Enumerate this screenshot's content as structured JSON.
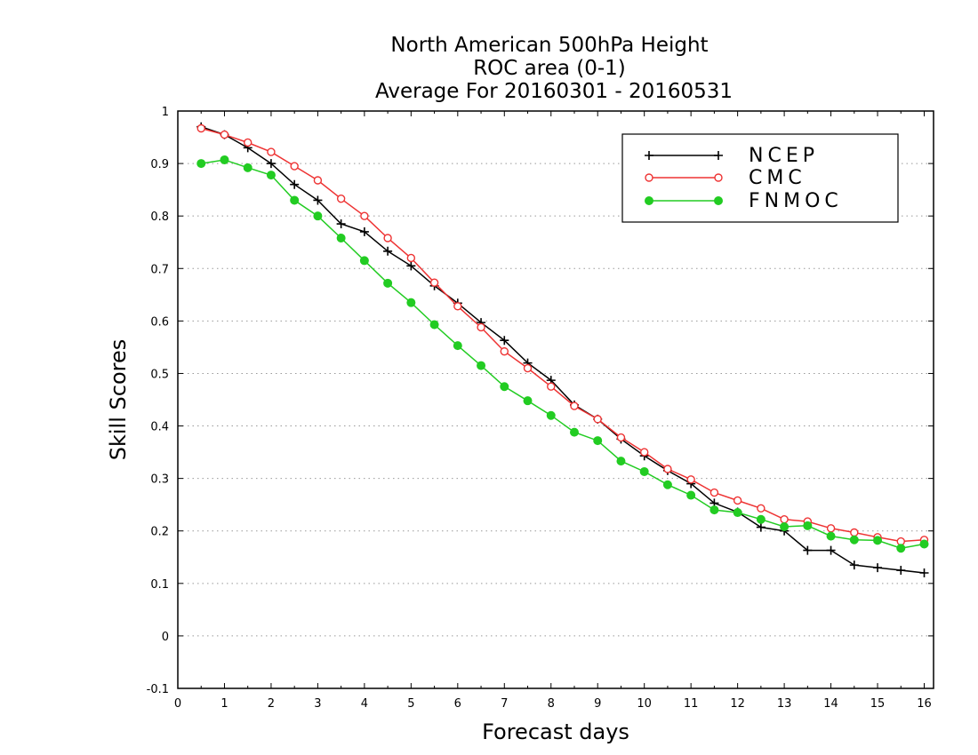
{
  "chart_data": {
    "type": "line",
    "title": [
      "North American 500hPa Height",
      "ROC area (0-1)",
      "Average For 20160301 - 20160531"
    ],
    "xlabel": "Forecast days",
    "ylabel": "Skill Scores",
    "xlim": [
      0,
      16.2
    ],
    "ylim": [
      -0.1,
      1
    ],
    "xticks": [
      "0",
      "1",
      "2",
      "3",
      "4",
      "5",
      "6",
      "7",
      "8",
      "9",
      "10",
      "11",
      "12",
      "13",
      "14",
      "15",
      "16"
    ],
    "yticks": [
      "1",
      "0.9",
      "0.8",
      "0.7",
      "0.6",
      "0.5",
      "0.4",
      "0.3",
      "0.2",
      "0.1",
      "0",
      "-0.1"
    ],
    "grid": true,
    "legend_position": "top-right",
    "x": [
      0.5,
      1,
      1.5,
      2,
      2.5,
      3,
      3.5,
      4,
      4.5,
      5,
      5.5,
      6,
      6.5,
      7,
      7.5,
      8,
      8.5,
      9,
      9.5,
      10,
      10.5,
      11,
      11.5,
      12,
      12.5,
      13,
      13.5,
      14,
      14.5,
      15,
      15.5,
      16
    ],
    "series": [
      {
        "name": "NCEP",
        "color": "#000000",
        "marker": "plus",
        "values": [
          0.97,
          0.955,
          0.93,
          0.9,
          0.86,
          0.83,
          0.785,
          0.77,
          0.733,
          0.705,
          0.667,
          0.634,
          0.597,
          0.563,
          0.52,
          0.487,
          0.44,
          0.413,
          0.375,
          0.343,
          0.315,
          0.29,
          0.253,
          0.236,
          0.207,
          0.2,
          0.163,
          0.163,
          0.135,
          0.13,
          0.125,
          0.12
        ]
      },
      {
        "name": "CMC",
        "color": "#ee3333",
        "marker": "open-circle",
        "values": [
          0.967,
          0.955,
          0.94,
          0.922,
          0.895,
          0.868,
          0.833,
          0.8,
          0.758,
          0.72,
          0.673,
          0.628,
          0.588,
          0.542,
          0.51,
          0.475,
          0.438,
          0.413,
          0.378,
          0.35,
          0.318,
          0.298,
          0.273,
          0.258,
          0.243,
          0.222,
          0.218,
          0.205,
          0.197,
          0.188,
          0.18,
          0.183
        ]
      },
      {
        "name": "FNMOC",
        "color": "#22cc22",
        "marker": "filled-circle",
        "values": [
          0.9,
          0.907,
          0.892,
          0.878,
          0.83,
          0.8,
          0.758,
          0.715,
          0.672,
          0.635,
          0.593,
          0.553,
          0.515,
          0.475,
          0.448,
          0.42,
          0.388,
          0.372,
          0.333,
          0.313,
          0.288,
          0.268,
          0.24,
          0.235,
          0.222,
          0.208,
          0.21,
          0.19,
          0.183,
          0.182,
          0.167,
          0.175
        ]
      }
    ]
  }
}
